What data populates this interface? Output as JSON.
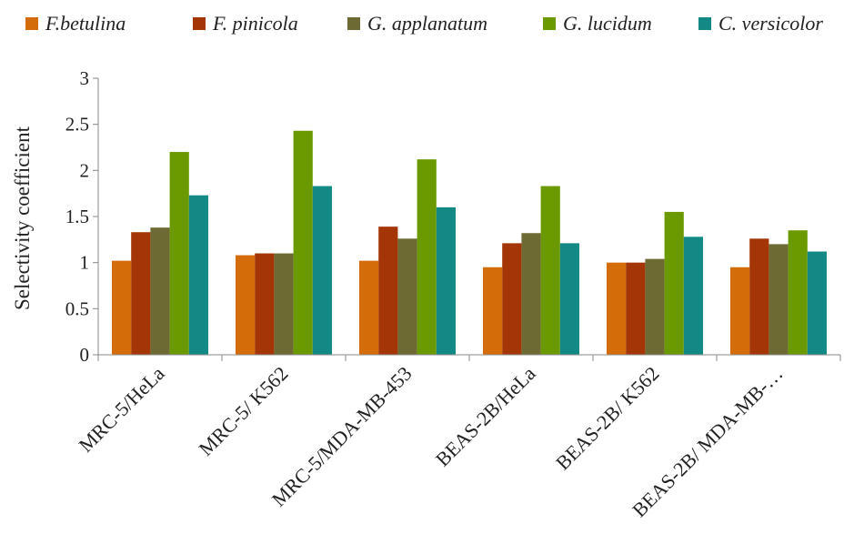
{
  "chart_data": {
    "type": "bar",
    "title": "",
    "xlabel": "",
    "ylabel": "Selectivity coefficient",
    "ylim": [
      0,
      3
    ],
    "yticks": [
      0,
      0.5,
      1,
      1.5,
      2,
      2.5,
      3
    ],
    "ytick_labels": [
      "0",
      "0.5",
      "1",
      "1.5",
      "2",
      "2.5",
      "3"
    ],
    "grid": false,
    "legend_position": "top",
    "categories": [
      "MRC-5/HeLa",
      "MRC-5/ K562",
      "MRC-5/MDA-MB-453",
      "BEAS-2B/HeLa",
      "BEAS-2B/ K562",
      "BEAS-2B/ MDA-MB-…"
    ],
    "series": [
      {
        "name": "F.betulina",
        "color": "#d46c0a",
        "values": [
          1.02,
          1.08,
          1.02,
          0.95,
          1.0,
          0.95
        ]
      },
      {
        "name": "F. pinicola",
        "color": "#a33507",
        "values": [
          1.33,
          1.1,
          1.39,
          1.21,
          1.0,
          1.26
        ]
      },
      {
        "name": "G. applanatum",
        "color": "#6e6a33",
        "values": [
          1.38,
          1.1,
          1.26,
          1.32,
          1.04,
          1.2
        ]
      },
      {
        "name": "G. lucidum",
        "color": "#6a9a00",
        "values": [
          2.2,
          2.43,
          2.12,
          1.83,
          1.55,
          1.35
        ]
      },
      {
        "name": "C. versicolor",
        "color": "#138986",
        "values": [
          1.73,
          1.83,
          1.6,
          1.21,
          1.28,
          1.12
        ]
      }
    ]
  }
}
